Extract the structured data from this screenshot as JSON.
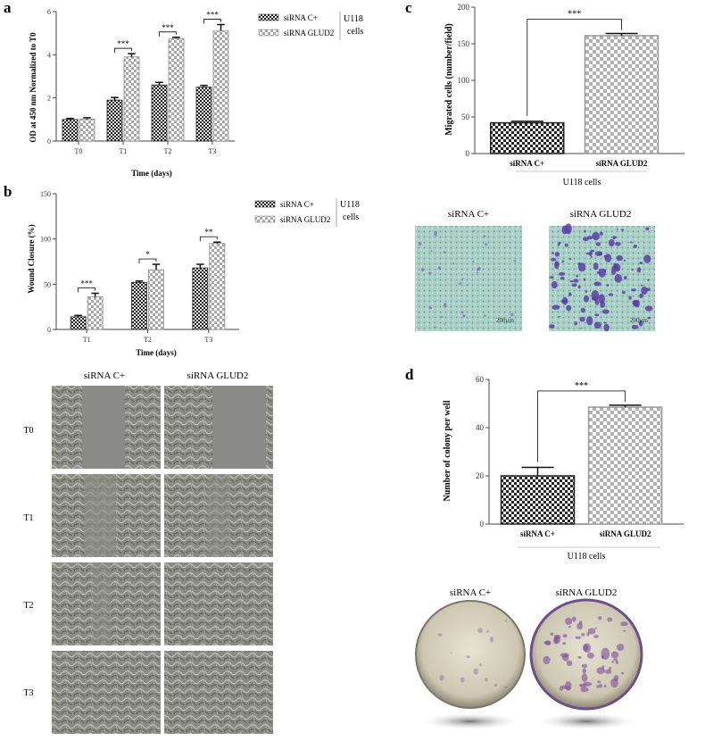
{
  "panel_letters": {
    "a": "a",
    "b": "b",
    "c": "c",
    "d": "d"
  },
  "colors": {
    "ctrl_fill": "#1e1e1e",
    "glud_fill": "#a8a8a8",
    "bar_edge": "#333333",
    "axis": "#444444",
    "stain": "#5b3fa6",
    "plate_bg": "#d9d2bf"
  },
  "chart_data": [
    {
      "id": "a",
      "type": "bar",
      "categories": [
        "T0",
        "T1",
        "T2",
        "T3"
      ],
      "series": [
        {
          "name": "siRNA C+",
          "values": [
            1.0,
            1.9,
            2.6,
            2.5
          ],
          "errors": [
            0.05,
            0.12,
            0.12,
            0.08
          ]
        },
        {
          "name": "siRNA GLUD2",
          "values": [
            1.02,
            3.9,
            4.75,
            5.1
          ],
          "errors": [
            0.06,
            0.15,
            0.06,
            0.3
          ]
        }
      ],
      "yticks": [
        "0",
        "2",
        "4",
        "6"
      ],
      "ylim": [
        0,
        6
      ],
      "ylabel": "OD at 450 nm Normalized to T0",
      "xlabel": "Time (days)",
      "significance": [
        "",
        "***",
        "***",
        "***"
      ],
      "legend_group": "U118 cells"
    },
    {
      "id": "b",
      "type": "bar",
      "categories": [
        "T1",
        "T2",
        "T3"
      ],
      "series": [
        {
          "name": "siRNA C+",
          "values": [
            14,
            52,
            68
          ],
          "errors": [
            1.5,
            1.5,
            4
          ]
        },
        {
          "name": "siRNA GLUD2",
          "values": [
            36,
            66,
            95
          ],
          "errors": [
            4,
            6,
            1.5
          ]
        }
      ],
      "yticks": [
        "0",
        "50",
        "100",
        "150"
      ],
      "ylim": [
        0,
        150
      ],
      "ylabel": "Wound Closure (%)",
      "xlabel": "Time (days)",
      "significance": [
        "***",
        "*",
        "**"
      ],
      "legend_group": "U118 cells"
    },
    {
      "id": "c",
      "type": "bar",
      "categories": [
        "siRNA C+",
        "siRNA GLUD2"
      ],
      "values": [
        42,
        161
      ],
      "errors": [
        2,
        3
      ],
      "yticks": [
        "0",
        "50",
        "100",
        "150",
        "200"
      ],
      "ylim": [
        0,
        200
      ],
      "ylabel": "Migrated cells (number/field)",
      "xlabel": "U118 cells",
      "significance": "***"
    },
    {
      "id": "d",
      "type": "bar",
      "categories": [
        "siRNA C+",
        "siRNA GLUD2"
      ],
      "values": [
        20,
        48.5
      ],
      "errors": [
        3.5,
        0.8
      ],
      "yticks": [
        "0",
        "20",
        "40",
        "60"
      ],
      "ylim": [
        0,
        60
      ],
      "ylabel": "Number of colony per well",
      "xlabel": "U118 cells",
      "significance": "***"
    }
  ],
  "legend": {
    "ctrl": "siRNA C+",
    "glud": "siRNA GLUD2",
    "group_line1": "U118",
    "group_line2": "cells"
  },
  "wound_images": {
    "col_labels": [
      "siRNA C+",
      "siRNA GLUD2"
    ],
    "row_labels": [
      "T0",
      "T1",
      "T2",
      "T3"
    ]
  },
  "migration_images": {
    "labels": [
      "siRNA C+",
      "siRNA GLUD2"
    ],
    "scale": "200µm"
  },
  "colony_images": {
    "labels": [
      "siRNA C+",
      "siRNA GLUD2"
    ]
  }
}
